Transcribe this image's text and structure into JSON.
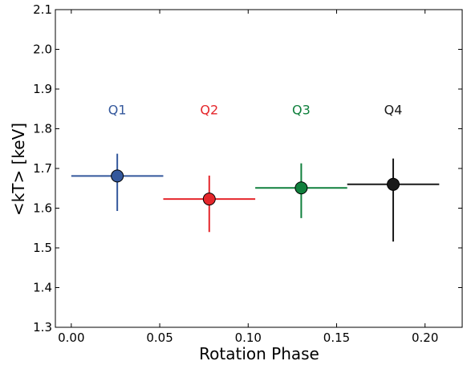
{
  "chart_data": {
    "type": "scatter",
    "xlabel": "Rotation Phase",
    "ylabel": "<kT> [keV]",
    "xlim": [
      -0.009,
      0.221
    ],
    "ylim": [
      1.3,
      2.1
    ],
    "xticks": [
      0.0,
      0.05,
      0.1,
      0.15,
      0.2
    ],
    "xtick_labels": [
      "0.00",
      "0.05",
      "0.10",
      "0.15",
      "0.20"
    ],
    "yticks": [
      1.3,
      1.4,
      1.5,
      1.6,
      1.7,
      1.8,
      1.9,
      2.0,
      2.1
    ],
    "ytick_labels": [
      "1.3",
      "1.4",
      "1.5",
      "1.6",
      "1.7",
      "1.8",
      "1.9",
      "2.0",
      "2.1"
    ],
    "grid": false,
    "legend": "none",
    "series": [
      {
        "label": "Q1",
        "color": "#34589c",
        "x": 0.026,
        "y": 1.681,
        "x_range": [
          0.0,
          0.052
        ],
        "y_range": [
          1.593,
          1.737
        ],
        "label_y": 1.848
      },
      {
        "label": "Q2",
        "color": "#e5262b",
        "x": 0.078,
        "y": 1.623,
        "x_range": [
          0.052,
          0.104
        ],
        "y_range": [
          1.54,
          1.682
        ],
        "label_y": 1.848
      },
      {
        "label": "Q3",
        "color": "#10803d",
        "x": 0.13,
        "y": 1.651,
        "x_range": [
          0.104,
          0.156
        ],
        "y_range": [
          1.575,
          1.713
        ],
        "label_y": 1.848
      },
      {
        "label": "Q4",
        "color": "#1a1a1a",
        "x": 0.182,
        "y": 1.66,
        "x_range": [
          0.156,
          0.208
        ],
        "y_range": [
          1.516,
          1.725
        ],
        "label_y": 1.848
      }
    ]
  }
}
